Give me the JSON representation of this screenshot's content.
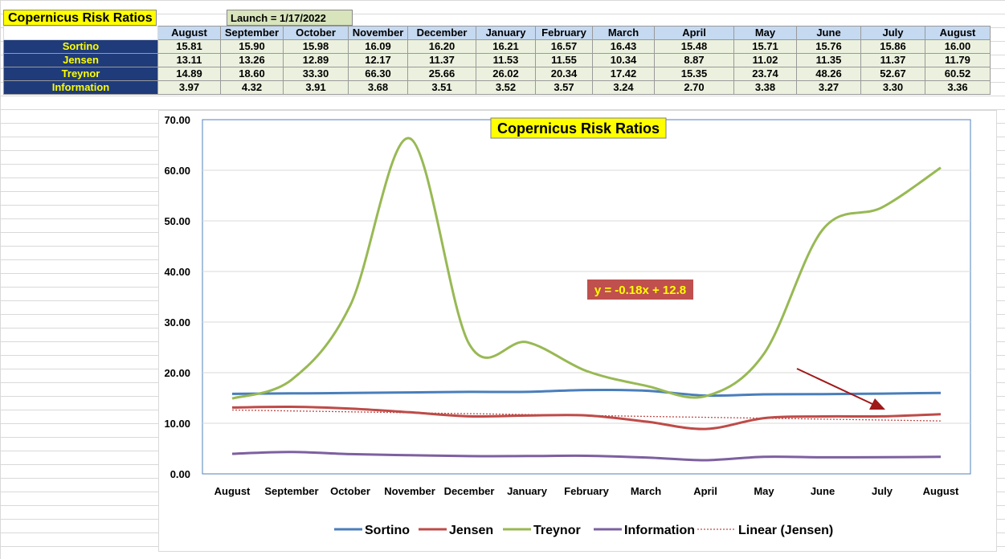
{
  "sheet": {
    "title": "Copernicus Risk Ratios",
    "launch": "Launch = 1/17/2022",
    "months": [
      "August",
      "September",
      "October",
      "November",
      "December",
      "January",
      "February",
      "March",
      "April",
      "May",
      "June",
      "July",
      "August"
    ],
    "rows": [
      {
        "label": "Sortino",
        "values": [
          "15.81",
          "15.90",
          "15.98",
          "16.09",
          "16.20",
          "16.21",
          "16.57",
          "16.43",
          "15.48",
          "15.71",
          "15.76",
          "15.86",
          "16.00"
        ]
      },
      {
        "label": "Jensen",
        "values": [
          "13.11",
          "13.26",
          "12.89",
          "12.17",
          "11.37",
          "11.53",
          "11.55",
          "10.34",
          "8.87",
          "11.02",
          "11.35",
          "11.37",
          "11.79"
        ]
      },
      {
        "label": "Treynor",
        "values": [
          "14.89",
          "18.60",
          "33.30",
          "66.30",
          "25.66",
          "26.02",
          "20.34",
          "17.42",
          "15.35",
          "23.74",
          "48.26",
          "52.67",
          "60.52"
        ]
      },
      {
        "label": "Information",
        "values": [
          "3.97",
          "4.32",
          "3.91",
          "3.68",
          "3.51",
          "3.52",
          "3.57",
          "3.24",
          "2.70",
          "3.38",
          "3.27",
          "3.30",
          "3.36"
        ]
      }
    ]
  },
  "chart_data": {
    "type": "line",
    "title": "Copernicus Risk Ratios",
    "categories": [
      "August",
      "September",
      "October",
      "November",
      "December",
      "January",
      "February",
      "March",
      "April",
      "May",
      "June",
      "July",
      "August"
    ],
    "ylim": [
      0,
      70
    ],
    "yticks": [
      "0.00",
      "10.00",
      "20.00",
      "30.00",
      "40.00",
      "50.00",
      "60.00",
      "70.00"
    ],
    "ytick_values": [
      0,
      10,
      20,
      30,
      40,
      50,
      60,
      70
    ],
    "grid": true,
    "legend_position": "bottom",
    "series": [
      {
        "name": "Sortino",
        "color": "#4a7ebb",
        "values": [
          15.81,
          15.9,
          15.98,
          16.09,
          16.2,
          16.21,
          16.57,
          16.43,
          15.48,
          15.71,
          15.76,
          15.86,
          16.0
        ]
      },
      {
        "name": "Jensen",
        "color": "#be4b48",
        "values": [
          13.11,
          13.26,
          12.89,
          12.17,
          11.37,
          11.53,
          11.55,
          10.34,
          8.87,
          11.02,
          11.35,
          11.37,
          11.79
        ]
      },
      {
        "name": "Treynor",
        "color": "#98b954",
        "values": [
          14.89,
          18.6,
          33.3,
          66.3,
          25.66,
          26.02,
          20.34,
          17.42,
          15.35,
          23.74,
          48.26,
          52.67,
          60.52
        ]
      },
      {
        "name": "Information",
        "color": "#7d60a0",
        "values": [
          3.97,
          4.32,
          3.91,
          3.68,
          3.51,
          3.52,
          3.57,
          3.24,
          2.7,
          3.38,
          3.27,
          3.3,
          3.36
        ]
      }
    ],
    "trendline": {
      "name": "Linear (Jensen)",
      "color": "#be4b48",
      "slope": -0.18,
      "intercept": 12.8,
      "label": "y = -0.18x + 12.8"
    },
    "annotation_arrow": {
      "color": "#a01818"
    }
  }
}
